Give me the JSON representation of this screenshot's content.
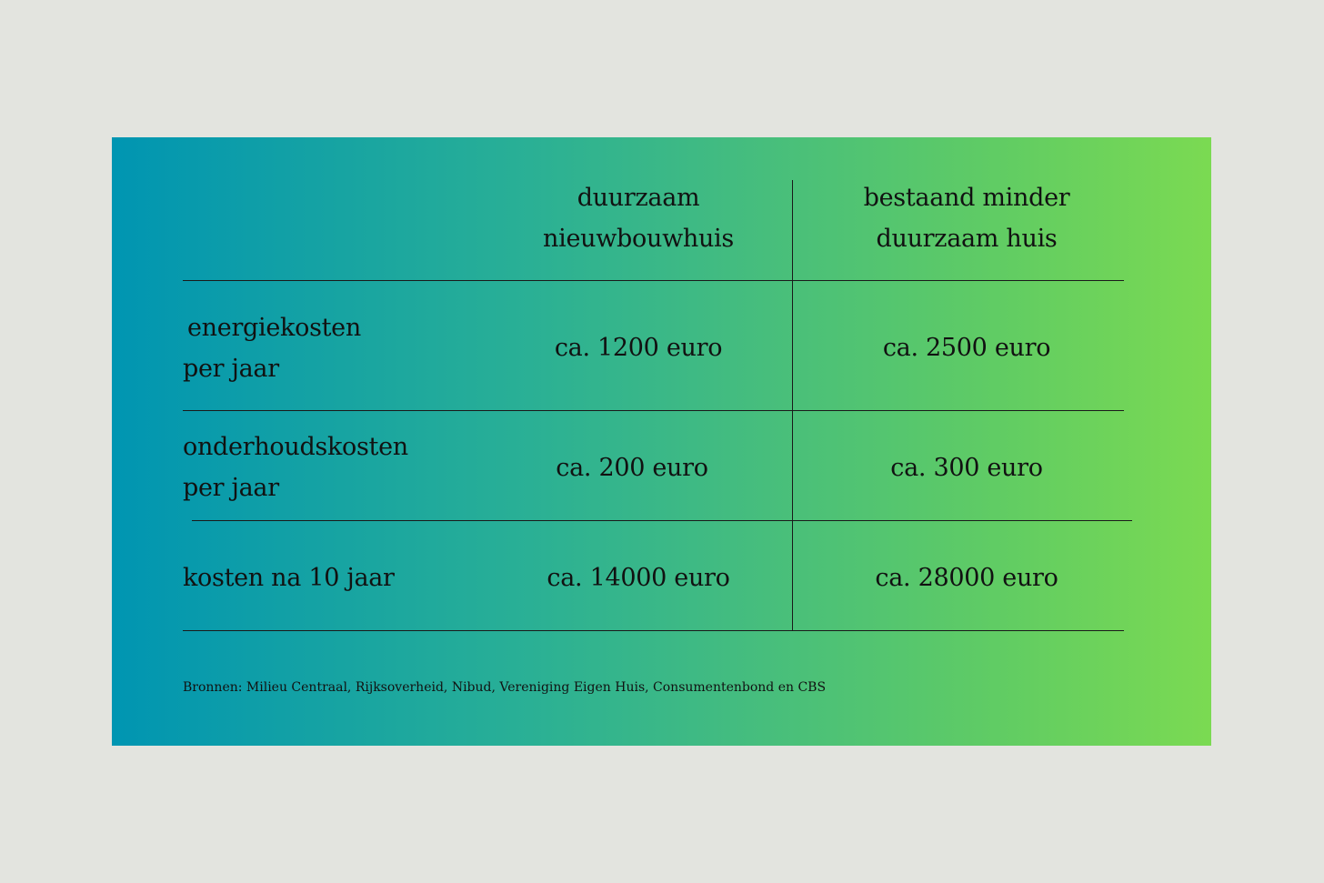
{
  "table": {
    "headers": [
      {
        "line1": "duurzaam",
        "line2": "nieuwbouwhuis"
      },
      {
        "line1": "bestaand minder",
        "line2": "duurzaam huis"
      }
    ],
    "rows": [
      {
        "label_line1": "energiekosten",
        "label_line2": "per jaar",
        "col1": "ca. 1200 euro",
        "col2": "ca. 2500 euro"
      },
      {
        "label_line1": "onderhoudskosten",
        "label_line2": "per jaar",
        "col1": "ca. 200 euro",
        "col2": "ca. 300 euro"
      },
      {
        "label_line1": "kosten na 10 jaar",
        "label_line2": "",
        "col1": "ca. 14000 euro",
        "col2": "ca. 28000 euro"
      }
    ]
  },
  "footer": {
    "sources": "Bronnen: Milieu Centraal, Rijksoverheid, Nibud, Vereniging Eigen Huis, Consumentenbond en CBS"
  },
  "colors": {
    "page_background": "#e3e4df",
    "gradient_start": "#0095b2",
    "gradient_end": "#7bda52",
    "text": "#111111"
  }
}
